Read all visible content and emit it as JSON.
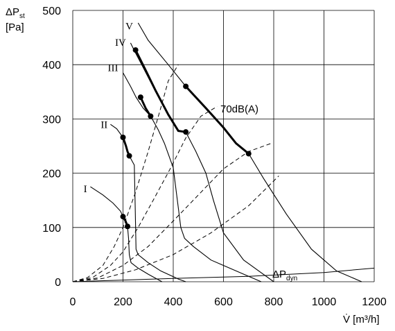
{
  "chart_data": {
    "type": "line",
    "y_label": {
      "main": "ΔP",
      "sub": "st",
      "unit": "[Pa]"
    },
    "x_label": "V̇ [m³/h]",
    "x_ticks": [
      0,
      200,
      400,
      600,
      800,
      1000,
      1200
    ],
    "y_ticks": [
      0,
      100,
      200,
      300,
      400,
      500
    ],
    "xlim": [
      0,
      1200
    ],
    "ylim": [
      0,
      500
    ],
    "grid": true,
    "noise_label": "70dB(A)",
    "dyn_label": {
      "main": "ΔP",
      "sub": "dyn"
    },
    "fan_curves": [
      {
        "name": "I",
        "label_at": [
          50,
          165
        ],
        "points": [
          [
            70,
            175
          ],
          [
            120,
            160
          ],
          [
            160,
            145
          ],
          [
            190,
            130
          ],
          [
            200,
            120
          ],
          [
            210,
            112
          ],
          [
            218,
            102
          ],
          [
            222,
            80
          ],
          [
            225,
            50
          ],
          [
            232,
            35
          ],
          [
            260,
            25
          ],
          [
            300,
            14
          ],
          [
            355,
            0
          ]
        ]
      },
      {
        "name": "II",
        "label_at": [
          125,
          283
        ],
        "points": [
          [
            150,
            290
          ],
          [
            175,
            282
          ],
          [
            200,
            266
          ],
          [
            212,
            250
          ],
          [
            218,
            240
          ],
          [
            225,
            232
          ],
          [
            245,
            215
          ],
          [
            248,
            150
          ],
          [
            252,
            60
          ],
          [
            260,
            50
          ],
          [
            300,
            35
          ],
          [
            350,
            20
          ],
          [
            420,
            5
          ],
          [
            450,
            0
          ]
        ]
      },
      {
        "name": "III",
        "label_at": [
          160,
          388
        ],
        "points": [
          [
            200,
            385
          ],
          [
            230,
            360
          ],
          [
            252,
            340
          ],
          [
            280,
            320
          ],
          [
            310,
            305
          ],
          [
            340,
            280
          ],
          [
            365,
            255
          ],
          [
            400,
            210
          ],
          [
            430,
            100
          ],
          [
            445,
            80
          ],
          [
            480,
            65
          ],
          [
            550,
            40
          ],
          [
            650,
            20
          ],
          [
            750,
            0
          ]
        ]
      },
      {
        "name": "IV",
        "label_at": [
          190,
          435
        ],
        "points": [
          [
            230,
            440
          ],
          [
            245,
            426
          ],
          [
            280,
            395
          ],
          [
            330,
            350
          ],
          [
            380,
            308
          ],
          [
            420,
            278
          ],
          [
            450,
            276
          ],
          [
            490,
            240
          ],
          [
            530,
            200
          ],
          [
            560,
            150
          ],
          [
            600,
            90
          ],
          [
            680,
            40
          ],
          [
            800,
            0
          ]
        ]
      },
      {
        "name": "V",
        "label_at": [
          225,
          465
        ],
        "points": [
          [
            260,
            477
          ],
          [
            300,
            445
          ],
          [
            380,
            400
          ],
          [
            450,
            360
          ],
          [
            530,
            320
          ],
          [
            600,
            284
          ],
          [
            650,
            255
          ],
          [
            700,
            236
          ],
          [
            760,
            190
          ],
          [
            850,
            125
          ],
          [
            950,
            60
          ],
          [
            1050,
            20
          ],
          [
            1150,
            0
          ]
        ]
      }
    ],
    "operating_segments": [
      {
        "curve": "I",
        "points": [
          [
            200,
            120
          ],
          [
            210,
            112
          ],
          [
            218,
            102
          ]
        ]
      },
      {
        "curve": "II",
        "points": [
          [
            200,
            266
          ],
          [
            212,
            250
          ],
          [
            218,
            240
          ],
          [
            225,
            232
          ]
        ]
      },
      {
        "curve": "III",
        "points": [
          [
            270,
            340
          ],
          [
            290,
            320
          ],
          [
            310,
            305
          ]
        ]
      },
      {
        "curve": "IV",
        "points": [
          [
            250,
            427
          ],
          [
            290,
            390
          ],
          [
            330,
            352
          ],
          [
            380,
            308
          ],
          [
            420,
            278
          ],
          [
            450,
            276
          ]
        ]
      },
      {
        "curve": "V",
        "points": [
          [
            450,
            360
          ],
          [
            530,
            320
          ],
          [
            600,
            284
          ],
          [
            650,
            255
          ],
          [
            700,
            236
          ]
        ]
      }
    ],
    "system_curves": [
      {
        "points": [
          [
            0,
            0
          ],
          [
            60,
            8
          ],
          [
            120,
            30
          ],
          [
            165,
            65
          ],
          [
            200,
            100
          ],
          [
            250,
            165
          ],
          [
            300,
            240
          ],
          [
            350,
            320
          ],
          [
            380,
            370
          ],
          [
            420,
            400
          ]
        ]
      },
      {
        "points": [
          [
            0,
            0
          ],
          [
            80,
            8
          ],
          [
            150,
            30
          ],
          [
            200,
            55
          ],
          [
            260,
            100
          ],
          [
            320,
            150
          ],
          [
            390,
            210
          ],
          [
            450,
            265
          ],
          [
            510,
            305
          ],
          [
            575,
            323
          ]
        ]
      },
      {
        "points": [
          [
            0,
            0
          ],
          [
            100,
            7
          ],
          [
            200,
            30
          ],
          [
            300,
            65
          ],
          [
            400,
            112
          ],
          [
            500,
            160
          ],
          [
            600,
            208
          ],
          [
            700,
            240
          ],
          [
            790,
            255
          ]
        ]
      },
      {
        "points": [
          [
            0,
            0
          ],
          [
            120,
            6
          ],
          [
            250,
            22
          ],
          [
            400,
            50
          ],
          [
            550,
            90
          ],
          [
            700,
            140
          ],
          [
            820,
            195
          ]
        ]
      }
    ],
    "dyn_curve": {
      "points": [
        [
          0,
          0
        ],
        [
          400,
          6
        ],
        [
          700,
          10
        ],
        [
          1000,
          17
        ],
        [
          1200,
          25
        ]
      ]
    },
    "markers": [
      [
        200,
        120
      ],
      [
        218,
        102
      ],
      [
        200,
        266
      ],
      [
        225,
        232
      ],
      [
        270,
        340
      ],
      [
        310,
        305
      ],
      [
        250,
        427
      ],
      [
        450,
        276
      ],
      [
        450,
        360
      ],
      [
        700,
        236
      ]
    ]
  }
}
